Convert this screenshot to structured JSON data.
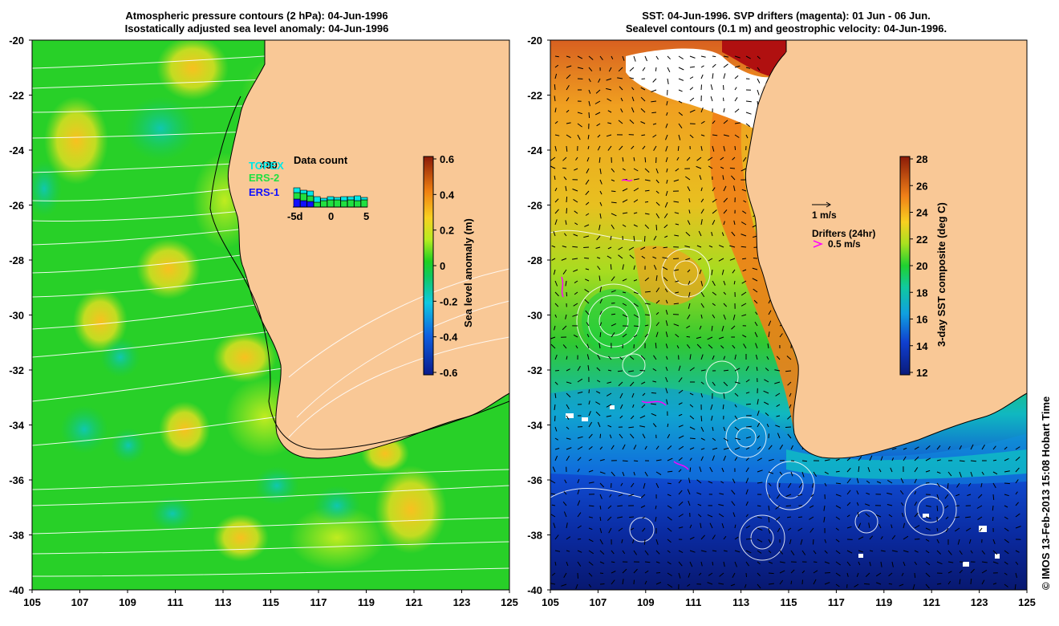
{
  "left_panel": {
    "title_line1": "Atmospheric pressure contours (2 hPa): 04-Jun-1996",
    "title_line2": "Isostatically adjusted sea level anomaly: 04-Jun-1996",
    "colorbar": {
      "label": "Sea level anomaly (m)",
      "ticks": [
        "0.6",
        "0.4",
        "0.2",
        "0",
        "-0.2",
        "-0.4",
        "-0.6"
      ]
    },
    "inset": {
      "title": "Data count",
      "count": "480",
      "legend": [
        {
          "name": "TOPEX",
          "color": "#00e8e8"
        },
        {
          "name": "ERS-2",
          "color": "#20e040"
        },
        {
          "name": "ERS-1",
          "color": "#1010ff"
        }
      ],
      "x_ticks": [
        "-5d",
        "0",
        "5"
      ]
    }
  },
  "right_panel": {
    "title_line1": "SST: 04-Jun-1996. SVP drifters (magenta): 01 Jun - 06 Jun.",
    "title_line2": "Sealevel contours (0.1 m) and geostrophic velocity: 04-Jun-1996.",
    "colorbar": {
      "label": "3-day SST composite (deg C)",
      "ticks": [
        "28",
        "26",
        "24",
        "22",
        "20",
        "18",
        "16",
        "14",
        "12"
      ]
    },
    "velocity_legend": "1 m/s",
    "drifters_legend": "Drifters (24hr)",
    "drifters_speed": "0.5 m/s"
  },
  "axes": {
    "lat_ticks": [
      "-20",
      "-22",
      "-24",
      "-26",
      "-28",
      "-30",
      "-32",
      "-34",
      "-36",
      "-38",
      "-40"
    ],
    "lon_ticks": [
      "105",
      "107",
      "109",
      "111",
      "113",
      "115",
      "117",
      "119",
      "121",
      "123",
      "125"
    ]
  },
  "credit": "© IMOS 13-Feb-2013 15:08 Hobart Time",
  "colors": {
    "land": "#f9c896",
    "sla_green": "#22cc22",
    "sst_orange": "#f09020",
    "magenta": "#ff00ff"
  }
}
